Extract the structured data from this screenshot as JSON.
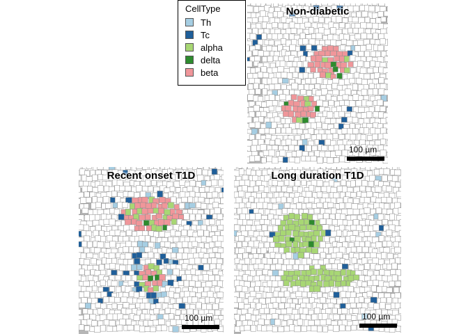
{
  "legend": {
    "title": "CellType",
    "items": [
      {
        "label": "Th",
        "color": "#a6cee3"
      },
      {
        "label": "Tc",
        "color": "#1f5f9a"
      },
      {
        "label": "alpha",
        "color": "#a8d774"
      },
      {
        "label": "delta",
        "color": "#2e8b2e"
      },
      {
        "label": "beta",
        "color": "#f0969a"
      }
    ]
  },
  "panels": [
    {
      "title": "Non-diabetic",
      "scalebar": "100 µm"
    },
    {
      "title": "Recent onset T1D",
      "scalebar": "100 µm"
    },
    {
      "title": "Long duration T1D",
      "scalebar": "100 µm"
    }
  ]
}
